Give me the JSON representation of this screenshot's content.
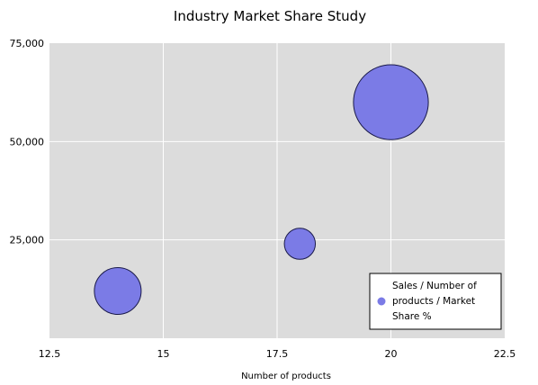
{
  "chart_data": {
    "type": "scatter",
    "variant": "bubble",
    "title": "Industry Market Share Study",
    "xlabel": "Number of products",
    "ylabel": "",
    "xlim": [
      12.5,
      22.5
    ],
    "ylim": [
      0,
      75000
    ],
    "x_ticks": [
      12.5,
      15,
      17.5,
      20,
      22.5
    ],
    "x_tick_labels": [
      "12.5",
      "15",
      "17.5",
      "20",
      "22.5"
    ],
    "y_ticks": [
      25000,
      50000,
      75000
    ],
    "y_tick_labels": [
      "25,000",
      "50,000",
      "75,000"
    ],
    "grid": true,
    "legend_position": "bottom-right",
    "colors": {
      "bubble_fill": "#7b7be6",
      "bubble_stroke": "#1a1a4a",
      "plot_background": "#dcdcdc",
      "grid": "#ffffff"
    },
    "series": [
      {
        "name": "Sales / Number of products / Market Share %",
        "legend_lines": [
          "Sales / Number of",
          "products / Market",
          "Share %"
        ],
        "points": [
          {
            "x": 14,
            "y": 12000,
            "size": 25
          },
          {
            "x": 18,
            "y": 24000,
            "size": 11
          },
          {
            "x": 20,
            "y": 60000,
            "size": 64
          }
        ]
      }
    ]
  }
}
